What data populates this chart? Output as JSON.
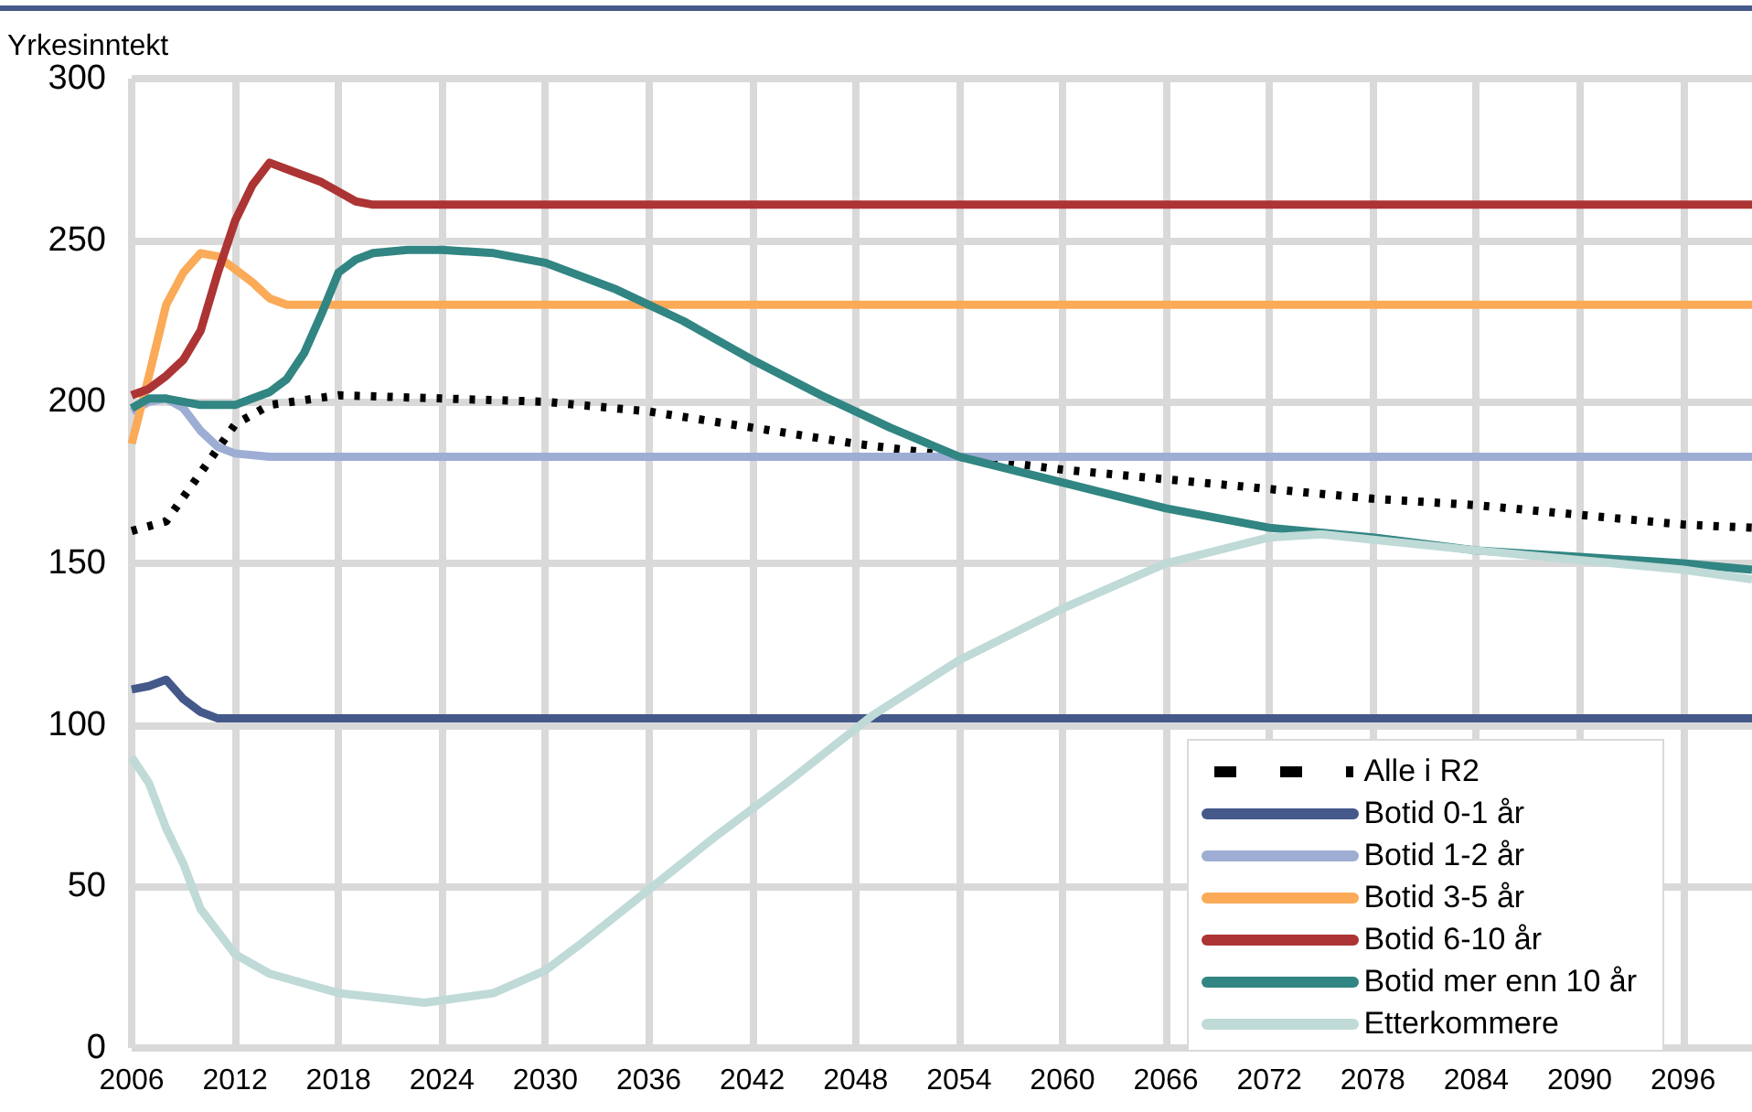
{
  "chart_data": {
    "type": "line",
    "ylabel": "Yrkesinntekt",
    "xlim": [
      2006,
      2100
    ],
    "xticks": [
      2006,
      2012,
      2018,
      2024,
      2030,
      2036,
      2042,
      2048,
      2054,
      2060,
      2066,
      2072,
      2078,
      2084,
      2090,
      2096
    ],
    "ylim": [
      0,
      300
    ],
    "yticks": [
      0,
      50,
      100,
      150,
      200,
      250,
      300
    ],
    "grid": true,
    "legend": "bottom right",
    "marker": "none",
    "series": [
      {
        "name": "Alle i R2",
        "color": "#000000",
        "line_style": "dashed",
        "x": [
          2006,
          2008,
          2010,
          2012,
          2014,
          2018,
          2024,
          2030,
          2036,
          2042,
          2048,
          2054,
          2060,
          2066,
          2072,
          2078,
          2084,
          2090,
          2096,
          2100
        ],
        "values": [
          160,
          163,
          178,
          193,
          199,
          202,
          201,
          200,
          197,
          192,
          187,
          183,
          179,
          176,
          173,
          170,
          168,
          165,
          162,
          161
        ]
      },
      {
        "name": "Botid 0-1 år",
        "color": "#44598a",
        "line_style": "solid",
        "x": [
          2006,
          2007,
          2008,
          2009,
          2010,
          2011,
          2100
        ],
        "values": [
          111,
          112,
          114,
          108,
          104,
          102,
          102
        ]
      },
      {
        "name": "Botid 1-2 år",
        "color": "#9dadd3",
        "line_style": "solid",
        "x": [
          2006,
          2007,
          2008,
          2009,
          2010,
          2011,
          2012,
          2014,
          2100
        ],
        "values": [
          197,
          200,
          201,
          198,
          191,
          186,
          184,
          183,
          183
        ]
      },
      {
        "name": "Botid 3-5 år",
        "color": "#fbaa58",
        "line_style": "solid",
        "x": [
          2006,
          2007,
          2008,
          2009,
          2010,
          2011,
          2012,
          2013,
          2014,
          2015,
          2100
        ],
        "values": [
          187,
          208,
          230,
          240,
          246,
          245,
          241,
          237,
          232,
          230,
          230
        ]
      },
      {
        "name": "Botid 6-10 år",
        "color": "#ac3434",
        "line_style": "solid",
        "x": [
          2006,
          2007,
          2008,
          2009,
          2010,
          2011,
          2012,
          2013,
          2014,
          2015,
          2016,
          2017,
          2018,
          2019,
          2020,
          2100
        ],
        "values": [
          202,
          204,
          208,
          213,
          222,
          240,
          256,
          267,
          274,
          272,
          270,
          268,
          265,
          262,
          261,
          261
        ]
      },
      {
        "name": "Botid mer enn 10 år",
        "color": "#318582",
        "line_style": "solid",
        "x": [
          2006,
          2007,
          2008,
          2010,
          2012,
          2013,
          2014,
          2015,
          2016,
          2017,
          2018,
          2019,
          2020,
          2022,
          2024,
          2027,
          2030,
          2034,
          2038,
          2042,
          2046,
          2050,
          2054,
          2060,
          2066,
          2072,
          2078,
          2084,
          2090,
          2096,
          2100
        ],
        "values": [
          198,
          201,
          201,
          199,
          199,
          201,
          203,
          207,
          215,
          227,
          240,
          244,
          246,
          247,
          247,
          246,
          243,
          235,
          225,
          213,
          202,
          192,
          183,
          175,
          167,
          161,
          158,
          154,
          152,
          150,
          148
        ]
      },
      {
        "name": "Etterkommere",
        "color": "#bfdad7",
        "line_style": "solid",
        "x": [
          2006,
          2007,
          2008,
          2009,
          2010,
          2012,
          2014,
          2018,
          2023,
          2027,
          2030,
          2032,
          2036,
          2040,
          2044,
          2049,
          2054,
          2060,
          2066,
          2072,
          2075,
          2084,
          2090,
          2096,
          2100
        ],
        "values": [
          90,
          82,
          68,
          57,
          43,
          29,
          23,
          17,
          14,
          17,
          24,
          32,
          49,
          66,
          82,
          103,
          120,
          136,
          150,
          158,
          159,
          154,
          151,
          148,
          145
        ]
      }
    ]
  }
}
